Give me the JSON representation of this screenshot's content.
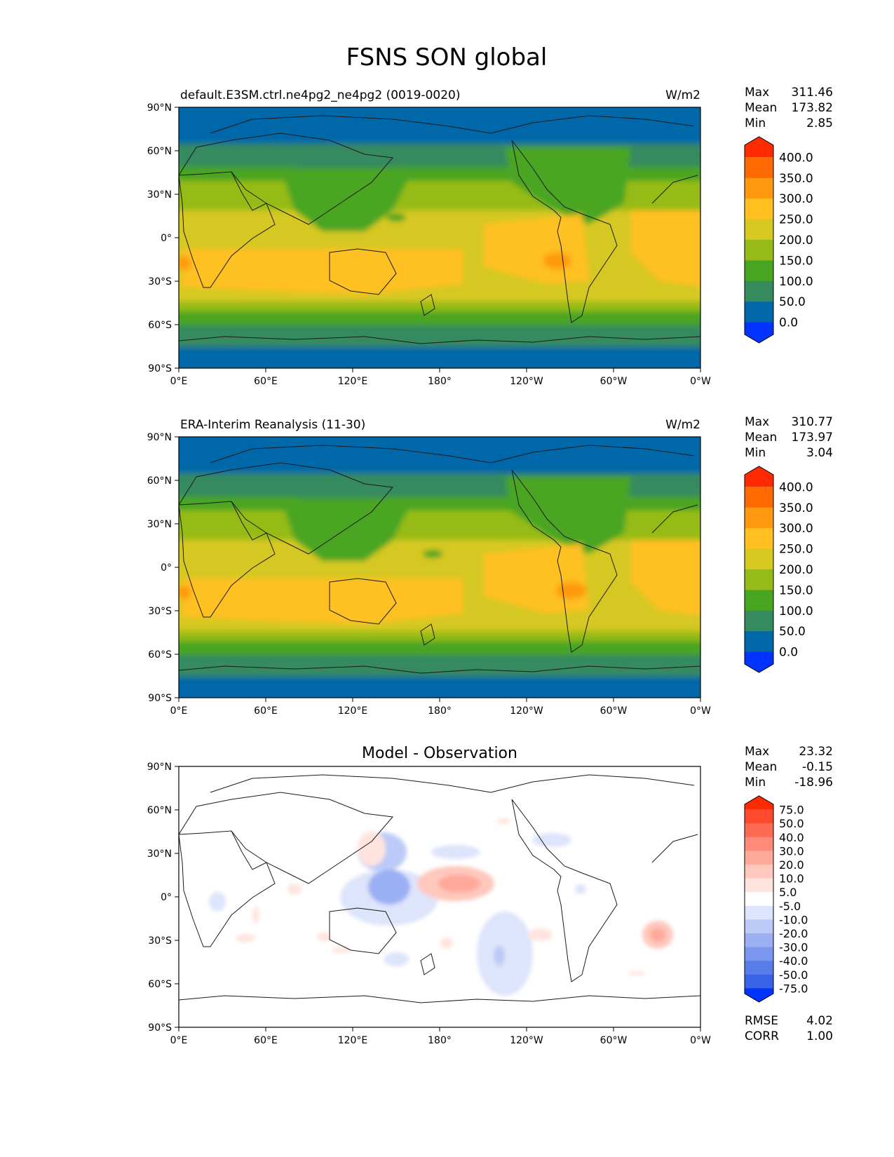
{
  "figure": {
    "title": "FSNS SON global"
  },
  "axes": {
    "lat_ticks": [
      "90°N",
      "60°N",
      "30°N",
      "0°",
      "30°S",
      "60°S",
      "90°S"
    ],
    "lon_ticks": [
      "0°E",
      "60°E",
      "120°E",
      "180°",
      "120°W",
      "60°W",
      "0°W"
    ]
  },
  "panels": [
    {
      "title_left": "default.E3SM.ctrl.ne4pg2_ne4pg2 (0019-0020)",
      "title_center": "",
      "units": "W/m2",
      "stats": {
        "labels": [
          "Max",
          "Mean",
          "Min"
        ],
        "values": [
          "311.46",
          "173.82",
          "2.85"
        ]
      },
      "colorbar": {
        "labels": [
          "400.0",
          "350.0",
          "300.0",
          "250.0",
          "200.0",
          "150.0",
          "100.0",
          "50.0",
          "0.0"
        ],
        "colors": [
          "#ff2a00",
          "#ff6a00",
          "#ff9a10",
          "#ffc020",
          "#d6c820",
          "#96bb18",
          "#48a520",
          "#358a5e",
          "#0068a8",
          "#0033ff"
        ]
      }
    },
    {
      "title_left": "ERA-Interim Reanalysis (11-30)",
      "title_center": "",
      "units": "W/m2",
      "stats": {
        "labels": [
          "Max",
          "Mean",
          "Min"
        ],
        "values": [
          "310.77",
          "173.97",
          "3.04"
        ]
      },
      "colorbar": {
        "labels": [
          "400.0",
          "350.0",
          "300.0",
          "250.0",
          "200.0",
          "150.0",
          "100.0",
          "50.0",
          "0.0"
        ],
        "colors": [
          "#ff2a00",
          "#ff6a00",
          "#ff9a10",
          "#ffc020",
          "#d6c820",
          "#96bb18",
          "#48a520",
          "#358a5e",
          "#0068a8",
          "#0033ff"
        ]
      }
    },
    {
      "title_left": "",
      "title_center": "Model - Observation",
      "units": "",
      "stats": {
        "labels": [
          "Max",
          "Mean",
          "Min"
        ],
        "values": [
          "23.32",
          "-0.15",
          "-18.96"
        ]
      },
      "colorbar": {
        "labels": [
          "75.0",
          "50.0",
          "40.0",
          "30.0",
          "20.0",
          "10.0",
          "5.0",
          "-5.0",
          "-10.0",
          "-20.0",
          "-30.0",
          "-40.0",
          "-50.0",
          "-75.0"
        ],
        "colors": [
          "#ff2a00",
          "#ff4a2e",
          "#ff6a55",
          "#ff8a7a",
          "#ffa99b",
          "#ffc8bd",
          "#ffe4de",
          "#ffffff",
          "#dde4fb",
          "#bccaf7",
          "#9bb0f3",
          "#7a96ef",
          "#597ceb",
          "#3862e7",
          "#0033ff"
        ]
      },
      "metrics": {
        "labels": [
          "RMSE",
          "CORR"
        ],
        "values": [
          "4.02",
          "1.00"
        ]
      }
    }
  ],
  "colors": {
    "ocean_land_outline": "#1a1a1a",
    "frame": "#000000"
  }
}
